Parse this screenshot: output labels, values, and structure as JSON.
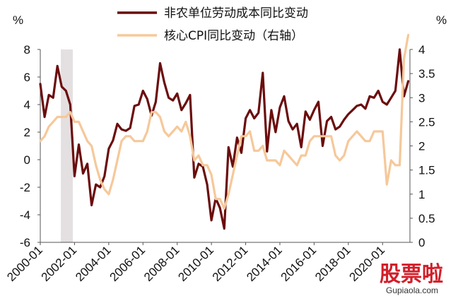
{
  "chart_data": {
    "type": "line",
    "left_axis_unit": "%",
    "right_axis_unit": "%",
    "x_tick_labels": [
      "2000-01",
      "2002-01",
      "2004-01",
      "2006-01",
      "2008-01",
      "2010-01",
      "2012-01",
      "2014-01",
      "2016-01",
      "2018-01",
      "2020-01"
    ],
    "ylim_left": [
      -6,
      8
    ],
    "yticks_left": [
      "-6",
      "-4",
      "-2",
      "0",
      "2",
      "4",
      "6",
      "8"
    ],
    "ylim_right": [
      0,
      4
    ],
    "yticks_right": [
      "0",
      "0.5",
      "1",
      "1.5",
      "2",
      "2.5",
      "3",
      "3.5",
      "4"
    ],
    "recession_shade": {
      "from": 2001.2,
      "to": 2001.9,
      "color": "#e4e0e1"
    },
    "grid": false,
    "legend_position": "top",
    "series": [
      {
        "name": "非农单位劳动成本同比变动",
        "axis": "left",
        "color": "#6b0d0d",
        "points": [
          [
            2000.0,
            5.5
          ],
          [
            2000.25,
            3.1
          ],
          [
            2000.5,
            4.7
          ],
          [
            2000.75,
            4.5
          ],
          [
            2001.0,
            6.8
          ],
          [
            2001.25,
            5.3
          ],
          [
            2001.5,
            5.0
          ],
          [
            2001.75,
            4.0
          ],
          [
            2002.0,
            -1.2
          ],
          [
            2002.25,
            1.1
          ],
          [
            2002.5,
            -1.0
          ],
          [
            2002.75,
            -0.3
          ],
          [
            2003.0,
            -3.3
          ],
          [
            2003.25,
            -1.8
          ],
          [
            2003.5,
            -2.0
          ],
          [
            2003.75,
            -1.2
          ],
          [
            2004.0,
            0.8
          ],
          [
            2004.25,
            1.4
          ],
          [
            2004.5,
            2.6
          ],
          [
            2004.75,
            2.2
          ],
          [
            2005.0,
            2.1
          ],
          [
            2005.25,
            2.3
          ],
          [
            2005.5,
            3.9
          ],
          [
            2005.75,
            4.0
          ],
          [
            2006.0,
            5.0
          ],
          [
            2006.25,
            4.4
          ],
          [
            2006.5,
            3.2
          ],
          [
            2006.75,
            4.2
          ],
          [
            2007.0,
            7.0
          ],
          [
            2007.25,
            5.6
          ],
          [
            2007.5,
            4.5
          ],
          [
            2007.75,
            4.3
          ],
          [
            2008.0,
            4.8
          ],
          [
            2008.25,
            3.6
          ],
          [
            2008.5,
            4.1
          ],
          [
            2008.75,
            4.7
          ],
          [
            2009.0,
            -1.3
          ],
          [
            2009.25,
            -0.3
          ],
          [
            2009.5,
            -0.5
          ],
          [
            2009.75,
            -1.8
          ],
          [
            2010.0,
            -4.4
          ],
          [
            2010.25,
            -2.8
          ],
          [
            2010.5,
            -3.5
          ],
          [
            2010.75,
            -5.0
          ],
          [
            2011.0,
            0.9
          ],
          [
            2011.25,
            -0.5
          ],
          [
            2011.5,
            1.6
          ],
          [
            2011.75,
            0.5
          ],
          [
            2012.0,
            3.0
          ],
          [
            2012.25,
            3.6
          ],
          [
            2012.5,
            3.0
          ],
          [
            2012.75,
            3.4
          ],
          [
            2013.0,
            6.3
          ],
          [
            2013.25,
            0.6
          ],
          [
            2013.5,
            3.6
          ],
          [
            2013.75,
            2.0
          ],
          [
            2014.0,
            3.8
          ],
          [
            2014.25,
            4.6
          ],
          [
            2014.5,
            2.8
          ],
          [
            2014.75,
            2.2
          ],
          [
            2015.0,
            2.6
          ],
          [
            2015.25,
            0.9
          ],
          [
            2015.5,
            3.5
          ],
          [
            2015.75,
            2.9
          ],
          [
            2016.0,
            3.6
          ],
          [
            2016.25,
            4.2
          ],
          [
            2016.5,
            1.0
          ],
          [
            2016.75,
            2.8
          ],
          [
            2017.0,
            3.1
          ],
          [
            2017.25,
            2.2
          ],
          [
            2017.5,
            2.4
          ],
          [
            2017.75,
            2.9
          ],
          [
            2018.0,
            3.3
          ],
          [
            2018.25,
            3.6
          ],
          [
            2018.5,
            3.9
          ],
          [
            2018.75,
            4.0
          ],
          [
            2019.0,
            3.7
          ],
          [
            2019.25,
            4.6
          ],
          [
            2019.5,
            4.5
          ],
          [
            2019.75,
            5.0
          ],
          [
            2020.0,
            4.2
          ],
          [
            2020.25,
            4.0
          ],
          [
            2020.5,
            4.5
          ],
          [
            2020.75,
            5.0
          ],
          [
            2021.0,
            8.0
          ],
          [
            2021.25,
            4.6
          ],
          [
            2021.5,
            5.7
          ]
        ]
      },
      {
        "name": "核心CPI同比变动（右轴）",
        "axis": "right",
        "color": "#f6c89a",
        "points": [
          [
            2000.0,
            2.1
          ],
          [
            2000.25,
            2.2
          ],
          [
            2000.5,
            2.4
          ],
          [
            2000.75,
            2.5
          ],
          [
            2001.0,
            2.6
          ],
          [
            2001.25,
            2.6
          ],
          [
            2001.5,
            2.6
          ],
          [
            2001.75,
            2.7
          ],
          [
            2002.0,
            2.5
          ],
          [
            2002.25,
            2.5
          ],
          [
            2002.5,
            2.3
          ],
          [
            2002.75,
            2.1
          ],
          [
            2003.0,
            2.0
          ],
          [
            2003.25,
            1.6
          ],
          [
            2003.5,
            1.3
          ],
          [
            2003.75,
            1.1
          ],
          [
            2004.0,
            1.0
          ],
          [
            2004.25,
            1.3
          ],
          [
            2004.5,
            1.7
          ],
          [
            2004.75,
            2.1
          ],
          [
            2005.0,
            2.2
          ],
          [
            2005.25,
            2.2
          ],
          [
            2005.5,
            2.1
          ],
          [
            2005.75,
            2.1
          ],
          [
            2006.0,
            2.1
          ],
          [
            2006.25,
            2.3
          ],
          [
            2006.5,
            2.7
          ],
          [
            2006.75,
            2.7
          ],
          [
            2007.0,
            2.6
          ],
          [
            2007.25,
            2.3
          ],
          [
            2007.5,
            2.2
          ],
          [
            2007.75,
            2.3
          ],
          [
            2008.0,
            2.4
          ],
          [
            2008.25,
            2.3
          ],
          [
            2008.5,
            2.5
          ],
          [
            2008.75,
            2.2
          ],
          [
            2009.0,
            1.7
          ],
          [
            2009.25,
            1.8
          ],
          [
            2009.5,
            1.6
          ],
          [
            2009.75,
            1.6
          ],
          [
            2010.0,
            1.4
          ],
          [
            2010.25,
            0.9
          ],
          [
            2010.5,
            0.9
          ],
          [
            2010.75,
            0.7
          ],
          [
            2011.0,
            1.0
          ],
          [
            2011.25,
            1.4
          ],
          [
            2011.5,
            1.8
          ],
          [
            2011.75,
            2.2
          ],
          [
            2012.0,
            2.2
          ],
          [
            2012.25,
            2.3
          ],
          [
            2012.5,
            1.9
          ],
          [
            2012.75,
            1.9
          ],
          [
            2013.0,
            2.0
          ],
          [
            2013.25,
            1.7
          ],
          [
            2013.5,
            1.7
          ],
          [
            2013.75,
            1.7
          ],
          [
            2014.0,
            1.6
          ],
          [
            2014.25,
            1.9
          ],
          [
            2014.5,
            1.8
          ],
          [
            2014.75,
            1.7
          ],
          [
            2015.0,
            1.6
          ],
          [
            2015.25,
            1.8
          ],
          [
            2015.5,
            1.8
          ],
          [
            2015.75,
            2.1
          ],
          [
            2016.0,
            2.2
          ],
          [
            2016.25,
            2.2
          ],
          [
            2016.5,
            2.2
          ],
          [
            2016.75,
            2.2
          ],
          [
            2017.0,
            2.2
          ],
          [
            2017.25,
            1.8
          ],
          [
            2017.5,
            1.7
          ],
          [
            2017.75,
            1.8
          ],
          [
            2018.0,
            2.1
          ],
          [
            2018.25,
            2.2
          ],
          [
            2018.5,
            2.3
          ],
          [
            2018.75,
            2.2
          ],
          [
            2019.0,
            2.1
          ],
          [
            2019.25,
            2.1
          ],
          [
            2019.5,
            2.3
          ],
          [
            2019.75,
            2.3
          ],
          [
            2020.0,
            2.3
          ],
          [
            2020.25,
            1.2
          ],
          [
            2020.5,
            1.7
          ],
          [
            2020.75,
            1.6
          ],
          [
            2021.0,
            1.6
          ],
          [
            2021.25,
            3.8
          ],
          [
            2021.5,
            4.3
          ]
        ]
      }
    ]
  },
  "watermark": {
    "text": "股票啦",
    "url": "Gupiaola.com"
  }
}
